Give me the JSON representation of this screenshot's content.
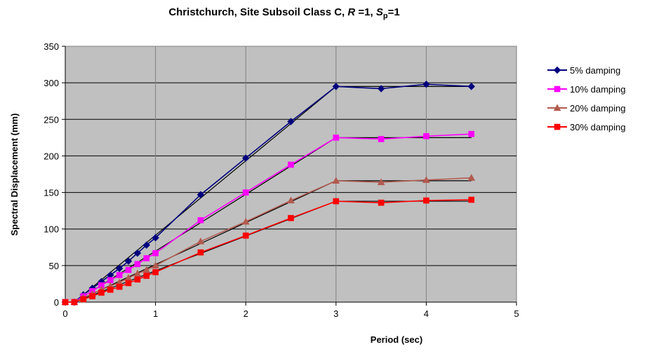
{
  "chart_data": {
    "type": "line",
    "title": {
      "prefix": "Christchurch, Site Subsoil Class C, ",
      "r_symbol": "R",
      "r_value": " =1, ",
      "s_symbol": "S",
      "s_subscript": "p",
      "s_value": "=1"
    },
    "xlabel": "Period (sec)",
    "ylabel": "Spectral Displacement (mm)",
    "xlim": [
      0,
      5
    ],
    "ylim": [
      0,
      350
    ],
    "xticks": [
      "0",
      "1",
      "2",
      "3",
      "4",
      "5"
    ],
    "yticks": [
      "0",
      "50",
      "100",
      "150",
      "200",
      "250",
      "300",
      "350"
    ],
    "grid": true,
    "plot_background": "#c0c0c0",
    "legend_position": "right",
    "x": [
      0,
      0.1,
      0.2,
      0.3,
      0.4,
      0.5,
      0.6,
      0.7,
      0.8,
      0.9,
      1.0,
      1.5,
      2.0,
      2.5,
      3.0,
      3.5,
      4.0,
      4.5
    ],
    "series": [
      {
        "name": "5% damping",
        "color": "#00007f",
        "marker": "diamond",
        "values": [
          0,
          0,
          10,
          19,
          28,
          37,
          46,
          56,
          67,
          78,
          88,
          147,
          197,
          247,
          295,
          292,
          298,
          295
        ],
        "fit": [
          [
            0.1,
            0
          ],
          [
            3.0,
            295
          ],
          [
            4.5,
            295
          ]
        ]
      },
      {
        "name": "10% damping",
        "color": "#ff00ff",
        "marker": "square",
        "values": [
          0,
          0,
          8,
          15,
          23,
          30,
          37,
          44,
          52,
          60,
          67,
          112,
          150,
          188,
          225,
          223,
          227,
          230
        ],
        "fit": [
          [
            0.1,
            0
          ],
          [
            3.0,
            225
          ],
          [
            4.5,
            225
          ]
        ]
      },
      {
        "name": "20% damping",
        "color": "#b35a4f",
        "marker": "triangle",
        "values": [
          0,
          0,
          6,
          11,
          17,
          22,
          27,
          33,
          39,
          44,
          50,
          83,
          110,
          139,
          166,
          164,
          167,
          170
        ],
        "fit": [
          [
            0.1,
            0
          ],
          [
            3.0,
            166
          ],
          [
            4.5,
            166
          ]
        ]
      },
      {
        "name": "30% damping",
        "color": "#ff0000",
        "marker": "square",
        "values": [
          0,
          0,
          4,
          8,
          13,
          17,
          21,
          26,
          31,
          36,
          41,
          68,
          91,
          115,
          138,
          136,
          139,
          140
        ],
        "fit": [
          [
            0.1,
            0
          ],
          [
            3.0,
            138
          ],
          [
            4.5,
            138
          ]
        ]
      }
    ]
  }
}
